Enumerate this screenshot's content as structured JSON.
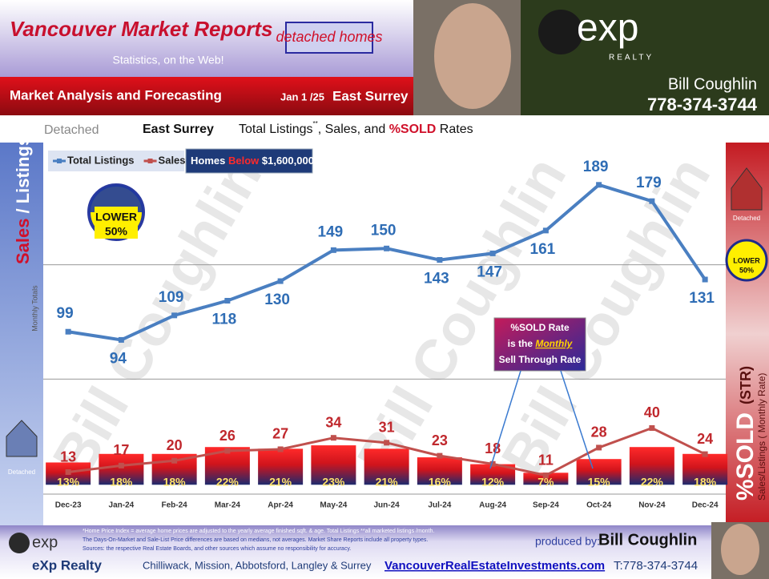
{
  "header": {
    "title": "Vancouver Market Reports",
    "subtitle": "Statistics, on the Web!",
    "badge": "detached homes",
    "section": "Market Analysis and Forecasting",
    "date": "Jan 1 /25",
    "area": "East Surrey",
    "brand": "exp",
    "brand_sub": "REALTY",
    "agent": "Bill Coughlin",
    "phone": "778-374-3744"
  },
  "chart_header": {
    "property_type": "Detached",
    "area": "East Surrey",
    "title_parts": [
      "Total Listings",
      "**",
      ", Sales, and ",
      "%SOLD",
      " Rates"
    ]
  },
  "price_filter": [
    "Homes ",
    "Below",
    " $1,600,000"
  ],
  "y_label": {
    "sales": "Sales",
    "listings": "/ Listings",
    "note": "Monthly Totals"
  },
  "lower_badge": {
    "word": "LOWER",
    "value": "50%"
  },
  "icon_label": "Detached",
  "right_panel": {
    "title": "%SOLD",
    "abbr": "(STR)",
    "note": "Sales/Listings ( Monthly Rate)"
  },
  "annotation": [
    "%SOLD Rate",
    "is the ",
    "Monthly",
    "Sell Through Rate"
  ],
  "watermark": "Bill Coughlin",
  "footer": {
    "notes": [
      "*Home Price Index = average home prices are adjusted to the yearly average finished sqft. & age.  Total Listings **all marketed listings /month.",
      "The Days-On-Market and Sale-List Price differences are based on medians, not averages. Market Share Reports include all property types.",
      "Sources:  the respective Real Estate Boards, and other sources which assume no responsibility for accuracy."
    ],
    "produced_by": "produced by:",
    "producer": "Bill Coughlin",
    "company": "eXp Realty",
    "cities": "Chilliwack, Mission, Abbotsford, Langley & Surrey",
    "website": "VancouverRealEstateInvestments.com",
    "phone": "T:778-374-3744"
  },
  "chart_data": {
    "type": "line",
    "categories": [
      "Dec-23",
      "Jan-24",
      "Feb-24",
      "Mar-24",
      "Apr-24",
      "May-24",
      "Jun-24",
      "Jul-24",
      "Aug-24",
      "Sep-24",
      "Oct-24",
      "Nov-24",
      "Dec-24"
    ],
    "series": [
      {
        "name": "Total Listings",
        "type": "line",
        "color": "#4a7fc1",
        "values": [
          99,
          94,
          109,
          118,
          130,
          149,
          150,
          143,
          147,
          161,
          189,
          179,
          131
        ]
      },
      {
        "name": "Sales",
        "type": "line",
        "color": "#c0504d",
        "values": [
          13,
          17,
          20,
          26,
          27,
          34,
          31,
          23,
          18,
          11,
          28,
          40,
          24
        ]
      },
      {
        "name": "%SOLD",
        "type": "bar",
        "axis": "y2",
        "color": "#e8232a",
        "values": [
          13,
          18,
          18,
          22,
          21,
          23,
          21,
          16,
          12,
          7,
          15,
          22,
          18
        ],
        "value_labels": [
          "13%",
          "18%",
          "18%",
          "22%",
          "21%",
          "23%",
          "21%",
          "16%",
          "12%",
          "7%",
          "15%",
          "22%",
          "18%"
        ]
      }
    ],
    "ylim": [
      0,
      210
    ],
    "y2lim": [
      -5,
      195
    ],
    "gridlines": [
      70,
      140
    ],
    "legend": "top-left"
  }
}
